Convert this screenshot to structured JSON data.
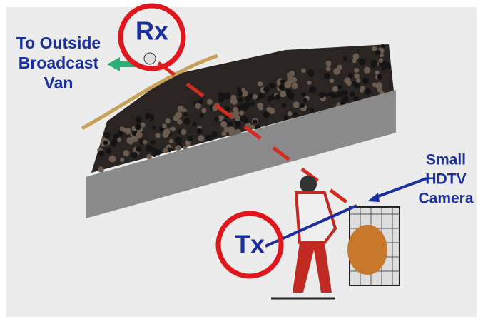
{
  "labels": {
    "rx": "Rx",
    "tx": "Tx",
    "outside_van": [
      "To Outside",
      "Broadcast",
      "Van"
    ],
    "camera": [
      "Small",
      "HDTV",
      "Camera"
    ]
  }
}
